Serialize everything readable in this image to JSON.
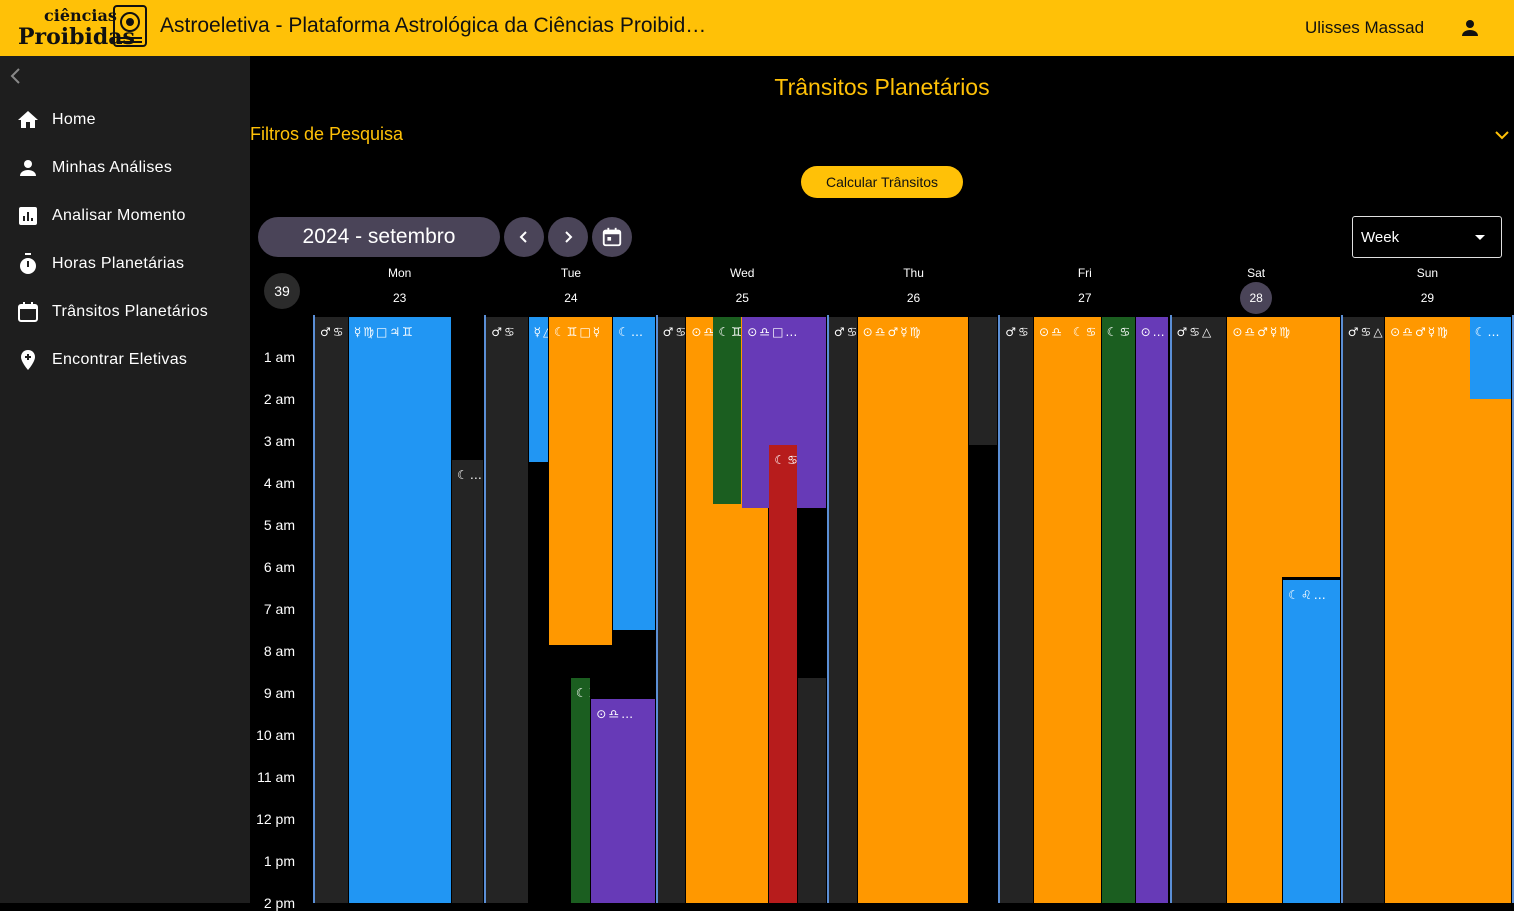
{
  "app": {
    "title": "Astroeletiva - Plataforma Astrológica da Ciências Proibid…",
    "logo_text_line1": "ciências",
    "logo_text_line2": "Proibidas",
    "user_name": "Ulisses Massad"
  },
  "sidebar": {
    "items": [
      {
        "label": "Home",
        "icon": "home-icon"
      },
      {
        "label": "Minhas Análises",
        "icon": "person-icon"
      },
      {
        "label": "Analisar Momento",
        "icon": "chart-icon"
      },
      {
        "label": "Horas Planetárias",
        "icon": "timer-icon"
      },
      {
        "label": "Trânsitos Planetários",
        "icon": "calendar-icon"
      },
      {
        "label": "Encontrar Eletivas",
        "icon": "pin-icon"
      }
    ]
  },
  "main": {
    "page_title": "Trânsitos Planetários",
    "filters_label": "Filtros de Pesquisa",
    "calc_button": "Calcular Trânsitos"
  },
  "calendar": {
    "month_label": "2024 - setembro",
    "view_mode": "Week",
    "week_number": "39",
    "days": [
      {
        "name": "Mon",
        "num": "23",
        "today": false
      },
      {
        "name": "Tue",
        "num": "24",
        "today": false
      },
      {
        "name": "Wed",
        "num": "25",
        "today": false
      },
      {
        "name": "Thu",
        "num": "26",
        "today": false
      },
      {
        "name": "Fri",
        "num": "27",
        "today": false
      },
      {
        "name": "Sat",
        "num": "28",
        "today": true
      },
      {
        "name": "Sun",
        "num": "29",
        "today": false
      }
    ],
    "hours": [
      "1 am",
      "2 am",
      "3 am",
      "4 am",
      "5 am",
      "6 am",
      "7 am",
      "8 am",
      "9 am",
      "10 am",
      "11 am",
      "12 pm",
      "1 pm",
      "2 pm"
    ],
    "colors": {
      "dark": "#242424",
      "blue": "#2196F3",
      "orange": "#FF9800",
      "green": "#1B5E20",
      "purple": "#673AB7",
      "red": "#B71C1C"
    },
    "events": [
      {
        "day": 0,
        "lane": [
          0,
          0.2
        ],
        "start": 0,
        "end": 14,
        "color": "dark",
        "label": "♂♋"
      },
      {
        "day": 0,
        "lane": [
          0.2,
          0.81
        ],
        "start": 0,
        "end": 14,
        "color": "blue",
        "label": "☿♍□♃♊"
      },
      {
        "day": 0,
        "lane": [
          0.81,
          1
        ],
        "start": 3.4,
        "end": 14,
        "color": "dark",
        "label": "☾…"
      },
      {
        "day": 1,
        "lane": [
          0,
          0.25
        ],
        "start": 0,
        "end": 14,
        "color": "dark",
        "label": "♂♋"
      },
      {
        "day": 1,
        "lane": [
          0.25,
          0.37
        ],
        "start": 0,
        "end": 3.45,
        "color": "blue",
        "label": "☿△♃"
      },
      {
        "day": 1,
        "lane": [
          0.37,
          0.75
        ],
        "start": 0,
        "end": 7.8,
        "color": "orange",
        "label": "☾♊□☿"
      },
      {
        "day": 1,
        "lane": [
          0.75,
          1
        ],
        "start": 0,
        "end": 7.45,
        "color": "blue",
        "label": "☾…"
      },
      {
        "day": 1,
        "lane": [
          0.5,
          0.62
        ],
        "start": 8.6,
        "end": 14,
        "color": "green",
        "label": "☾♊△♀"
      },
      {
        "day": 1,
        "lane": [
          0.62,
          1
        ],
        "start": 9.1,
        "end": 14,
        "color": "purple",
        "label": "⊙♎…"
      },
      {
        "day": 2,
        "lane": [
          0,
          0.17
        ],
        "start": 0,
        "end": 14,
        "color": "dark",
        "label": "♂♋"
      },
      {
        "day": 2,
        "lane": [
          0.17,
          0.66
        ],
        "start": 0,
        "end": 14,
        "color": "orange",
        "label": "⊙♎"
      },
      {
        "day": 2,
        "lane": [
          0.33,
          0.5
        ],
        "start": 0,
        "end": 4.45,
        "color": "green",
        "label": "☾♊"
      },
      {
        "day": 2,
        "lane": [
          0.5,
          1
        ],
        "start": 0,
        "end": 4.55,
        "color": "purple",
        "label": "⊙♎□…"
      },
      {
        "day": 2,
        "lane": [
          0.66,
          0.83
        ],
        "start": 3.05,
        "end": 14,
        "color": "red",
        "label": "☾♋…"
      },
      {
        "day": 2,
        "lane": [
          0.83,
          1
        ],
        "start": 8.6,
        "end": 14,
        "color": "dark",
        "label": ""
      },
      {
        "day": 3,
        "lane": [
          0,
          0.17
        ],
        "start": 0,
        "end": 14,
        "color": "dark",
        "label": "♂♋"
      },
      {
        "day": 3,
        "lane": [
          0.17,
          0.83
        ],
        "start": 0,
        "end": 14,
        "color": "orange",
        "label": "⊙♎♂☿♍"
      },
      {
        "day": 3,
        "lane": [
          0.83,
          1
        ],
        "start": 0,
        "end": 3.05,
        "color": "dark",
        "label": ""
      },
      {
        "day": 4,
        "lane": [
          0,
          0.2
        ],
        "start": 0,
        "end": 14,
        "color": "dark",
        "label": "♂♋"
      },
      {
        "day": 4,
        "lane": [
          0.2,
          0.6
        ],
        "start": 0,
        "end": 14,
        "color": "orange",
        "label": "⊙♎"
      },
      {
        "day": 4,
        "lane": [
          0.4,
          0.6
        ],
        "start": 0,
        "end": 12.35,
        "color": "orange",
        "label": "☾♋"
      },
      {
        "day": 4,
        "lane": [
          0.6,
          0.8
        ],
        "start": 0,
        "end": 14,
        "color": "green",
        "label": "☾♋"
      },
      {
        "day": 4,
        "lane": [
          0.8,
          1
        ],
        "start": 0,
        "end": 14,
        "color": "purple",
        "label": "⊙…"
      },
      {
        "day": 5,
        "lane": [
          0,
          0.33
        ],
        "start": 0,
        "end": 14,
        "color": "dark",
        "label": "♂♋△"
      },
      {
        "day": 5,
        "lane": [
          0.33,
          1
        ],
        "start": 0,
        "end": 6.2,
        "color": "orange",
        "label": "⊙♎♂☿♍"
      },
      {
        "day": 5,
        "lane": [
          0.66,
          1
        ],
        "start": 6.25,
        "end": 14,
        "color": "blue",
        "label": "☾♌…"
      },
      {
        "day": 5,
        "lane": [
          0.33,
          0.66
        ],
        "start": 6.2,
        "end": 14,
        "color": "orange",
        "label": ""
      },
      {
        "day": 6,
        "lane": [
          0,
          0.25
        ],
        "start": 0,
        "end": 14,
        "color": "dark",
        "label": "♂♋△"
      },
      {
        "day": 6,
        "lane": [
          0.25,
          1
        ],
        "start": 0,
        "end": 14,
        "color": "orange",
        "label": "⊙♎♂☿♍"
      },
      {
        "day": 6,
        "lane": [
          0.75,
          1
        ],
        "start": 0,
        "end": 1.95,
        "color": "blue",
        "label": "☾…"
      }
    ]
  }
}
